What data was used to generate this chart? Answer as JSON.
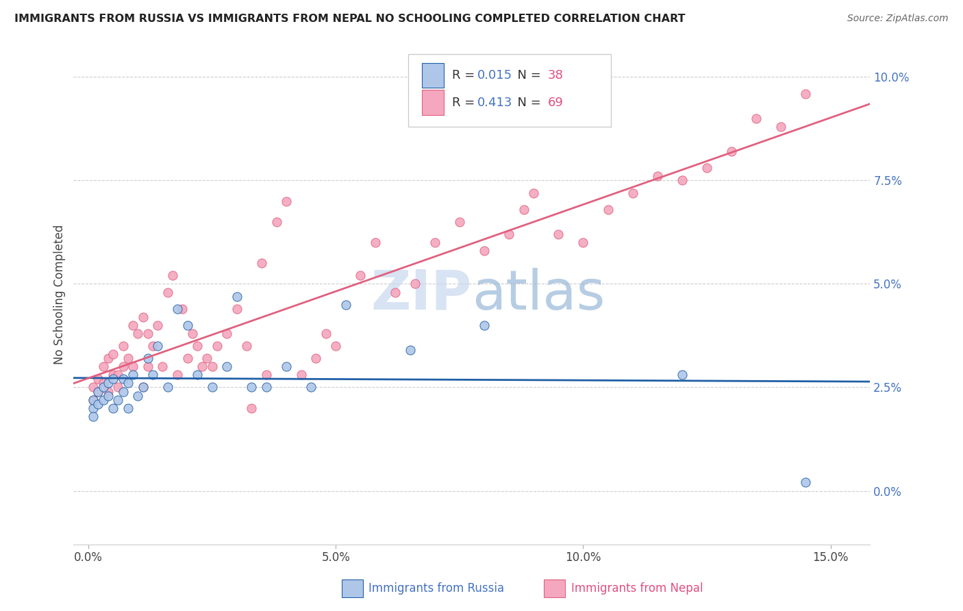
{
  "title": "IMMIGRANTS FROM RUSSIA VS IMMIGRANTS FROM NEPAL NO SCHOOLING COMPLETED CORRELATION CHART",
  "source": "Source: ZipAtlas.com",
  "xlabel_ticks": [
    0.0,
    0.05,
    0.1,
    0.15
  ],
  "xlabel_labels": [
    "0.0%",
    "5.0%",
    "10.0%",
    "15.0%"
  ],
  "ylabel_ticks": [
    0.0,
    0.025,
    0.05,
    0.075,
    0.1
  ],
  "ylabel_labels": [
    "0.0%",
    "2.5%",
    "5.0%",
    "7.5%",
    "10.0%"
  ],
  "xlim": [
    -0.003,
    0.158
  ],
  "ylim": [
    -0.013,
    0.108
  ],
  "legend_label1": "Immigrants from Russia",
  "legend_label2": "Immigrants from Nepal",
  "R1": "0.015",
  "N1": "38",
  "R2": "0.413",
  "N2": "69",
  "color_russia": "#aec6e8",
  "color_nepal": "#f4a7bf",
  "line_color_russia": "#1f5fa6",
  "line_color_nepal": "#e0607e",
  "watermark_color": "#d0dff0",
  "russia_x": [
    0.001,
    0.001,
    0.001,
    0.002,
    0.002,
    0.003,
    0.003,
    0.004,
    0.004,
    0.005,
    0.005,
    0.006,
    0.007,
    0.007,
    0.008,
    0.008,
    0.009,
    0.01,
    0.011,
    0.012,
    0.013,
    0.014,
    0.016,
    0.018,
    0.02,
    0.022,
    0.025,
    0.028,
    0.03,
    0.033,
    0.036,
    0.04,
    0.045,
    0.052,
    0.065,
    0.08,
    0.12,
    0.145
  ],
  "russia_y": [
    0.02,
    0.022,
    0.018,
    0.024,
    0.021,
    0.025,
    0.022,
    0.026,
    0.023,
    0.02,
    0.027,
    0.022,
    0.024,
    0.027,
    0.02,
    0.026,
    0.028,
    0.023,
    0.025,
    0.032,
    0.028,
    0.035,
    0.025,
    0.044,
    0.04,
    0.028,
    0.025,
    0.03,
    0.047,
    0.025,
    0.025,
    0.03,
    0.025,
    0.045,
    0.034,
    0.04,
    0.028,
    0.002
  ],
  "nepal_x": [
    0.001,
    0.001,
    0.002,
    0.002,
    0.003,
    0.003,
    0.004,
    0.004,
    0.005,
    0.005,
    0.006,
    0.006,
    0.007,
    0.007,
    0.008,
    0.009,
    0.009,
    0.01,
    0.011,
    0.011,
    0.012,
    0.012,
    0.013,
    0.014,
    0.015,
    0.016,
    0.017,
    0.018,
    0.019,
    0.02,
    0.021,
    0.022,
    0.023,
    0.024,
    0.025,
    0.026,
    0.028,
    0.03,
    0.032,
    0.033,
    0.035,
    0.036,
    0.038,
    0.04,
    0.043,
    0.046,
    0.048,
    0.05,
    0.055,
    0.058,
    0.062,
    0.066,
    0.07,
    0.075,
    0.08,
    0.085,
    0.088,
    0.09,
    0.095,
    0.1,
    0.105,
    0.11,
    0.115,
    0.12,
    0.125,
    0.13,
    0.135,
    0.14,
    0.145
  ],
  "nepal_y": [
    0.022,
    0.025,
    0.024,
    0.027,
    0.026,
    0.03,
    0.024,
    0.032,
    0.028,
    0.033,
    0.025,
    0.028,
    0.03,
    0.035,
    0.032,
    0.03,
    0.04,
    0.038,
    0.025,
    0.042,
    0.03,
    0.038,
    0.035,
    0.04,
    0.03,
    0.048,
    0.052,
    0.028,
    0.044,
    0.032,
    0.038,
    0.035,
    0.03,
    0.032,
    0.03,
    0.035,
    0.038,
    0.044,
    0.035,
    0.02,
    0.055,
    0.028,
    0.065,
    0.07,
    0.028,
    0.032,
    0.038,
    0.035,
    0.052,
    0.06,
    0.048,
    0.05,
    0.06,
    0.065,
    0.058,
    0.062,
    0.068,
    0.072,
    0.062,
    0.06,
    0.068,
    0.072,
    0.076,
    0.075,
    0.078,
    0.082,
    0.09,
    0.088,
    0.096
  ]
}
